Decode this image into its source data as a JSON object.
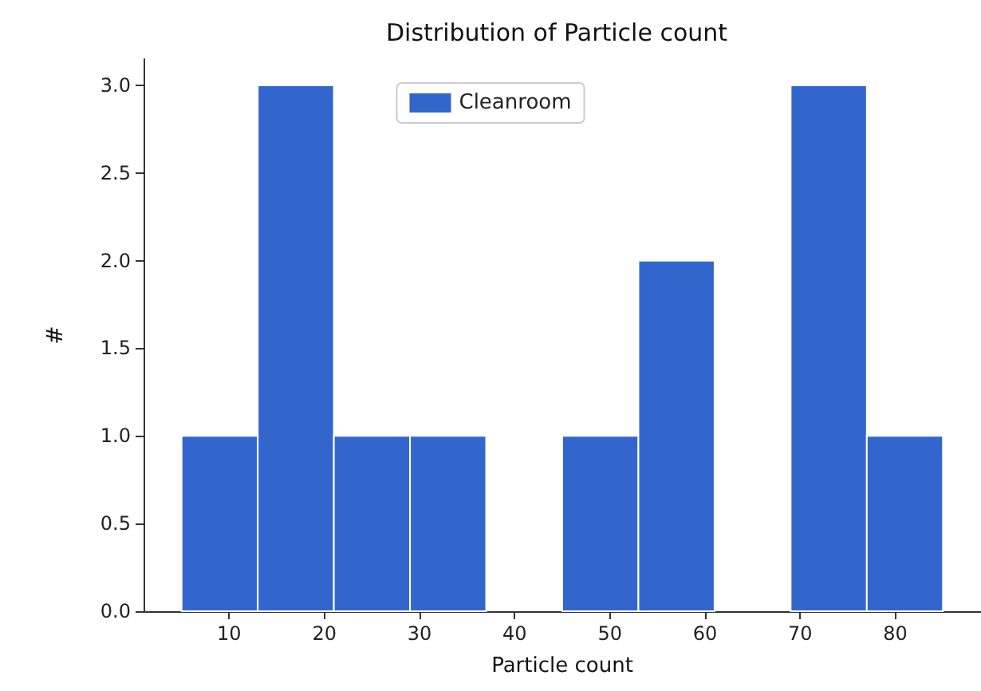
{
  "chart_data": {
    "type": "histogram",
    "title": "Distribution of Particle count",
    "xlabel": "Particle count",
    "ylabel": "#",
    "bins": [
      5,
      13,
      21,
      29,
      37,
      45,
      53,
      61,
      69,
      77,
      85
    ],
    "series": [
      {
        "name": "Cleanroom",
        "color": "#3366cc",
        "values": [
          1,
          3,
          1,
          1,
          0,
          1,
          2,
          0,
          3,
          1
        ]
      }
    ],
    "xlim": [
      1,
      89
    ],
    "xticks": [
      10,
      20,
      30,
      40,
      50,
      60,
      70,
      80
    ],
    "ylim": [
      0,
      3.15
    ],
    "yticks": [
      {
        "value": 0,
        "label": "0.0"
      },
      0.5,
      {
        "value": 1,
        "label": "1.0"
      },
      1.5,
      {
        "value": 2,
        "label": "2.0"
      },
      2.5,
      {
        "value": 3,
        "label": "3.0"
      }
    ],
    "grid": false,
    "legend": "top"
  }
}
